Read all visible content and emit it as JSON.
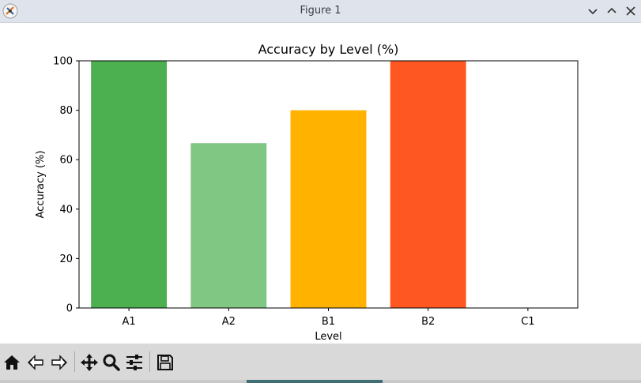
{
  "window": {
    "title": "Figure 1"
  },
  "toolbar": {
    "buttons": [
      {
        "name": "home-icon"
      },
      {
        "name": "back-icon"
      },
      {
        "name": "forward-icon"
      },
      {
        "name": "pan-icon"
      },
      {
        "name": "zoom-icon"
      },
      {
        "name": "configure-subplots-icon"
      },
      {
        "name": "save-icon"
      }
    ]
  },
  "colors": {
    "bars": [
      "#4caf50",
      "#81c784",
      "#ffb300",
      "#ff5722",
      "#e53935"
    ]
  },
  "chart_data": {
    "type": "bar",
    "title": "Accuracy by Level (%)",
    "xlabel": "Level",
    "ylabel": "Accuracy (%)",
    "categories": [
      "A1",
      "A2",
      "B1",
      "B2",
      "C1"
    ],
    "values": [
      100,
      66.7,
      80,
      100,
      0
    ],
    "ylim": [
      0,
      100
    ],
    "yticks": [
      0,
      20,
      40,
      60,
      80,
      100
    ],
    "grid": false
  }
}
